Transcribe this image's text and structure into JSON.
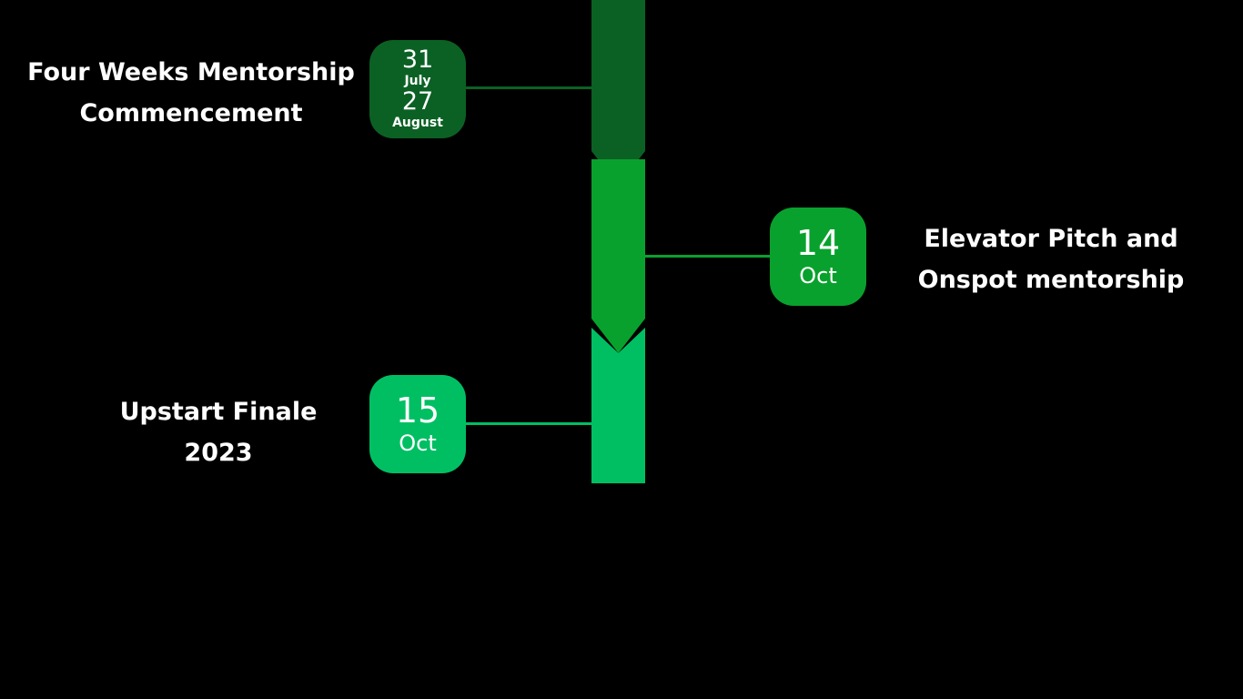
{
  "colors": {
    "background": "#000000",
    "stage1": "#0b6124",
    "stage2": "#09a12d",
    "stage3": "#00bf63",
    "text": "#ffffff"
  },
  "timeline": {
    "events": [
      {
        "title_line1": "Four Weeks Mentorship",
        "title_line2": "Commencement",
        "start_day": "31",
        "start_month": "July",
        "end_day": "27",
        "end_month": "August"
      },
      {
        "title_line1": "Elevator Pitch and",
        "title_line2": "Onspot mentorship",
        "day": "14",
        "month": "Oct"
      },
      {
        "title_line1": "Upstart Finale",
        "title_line2": "2023",
        "day": "15",
        "month": "Oct"
      }
    ]
  }
}
